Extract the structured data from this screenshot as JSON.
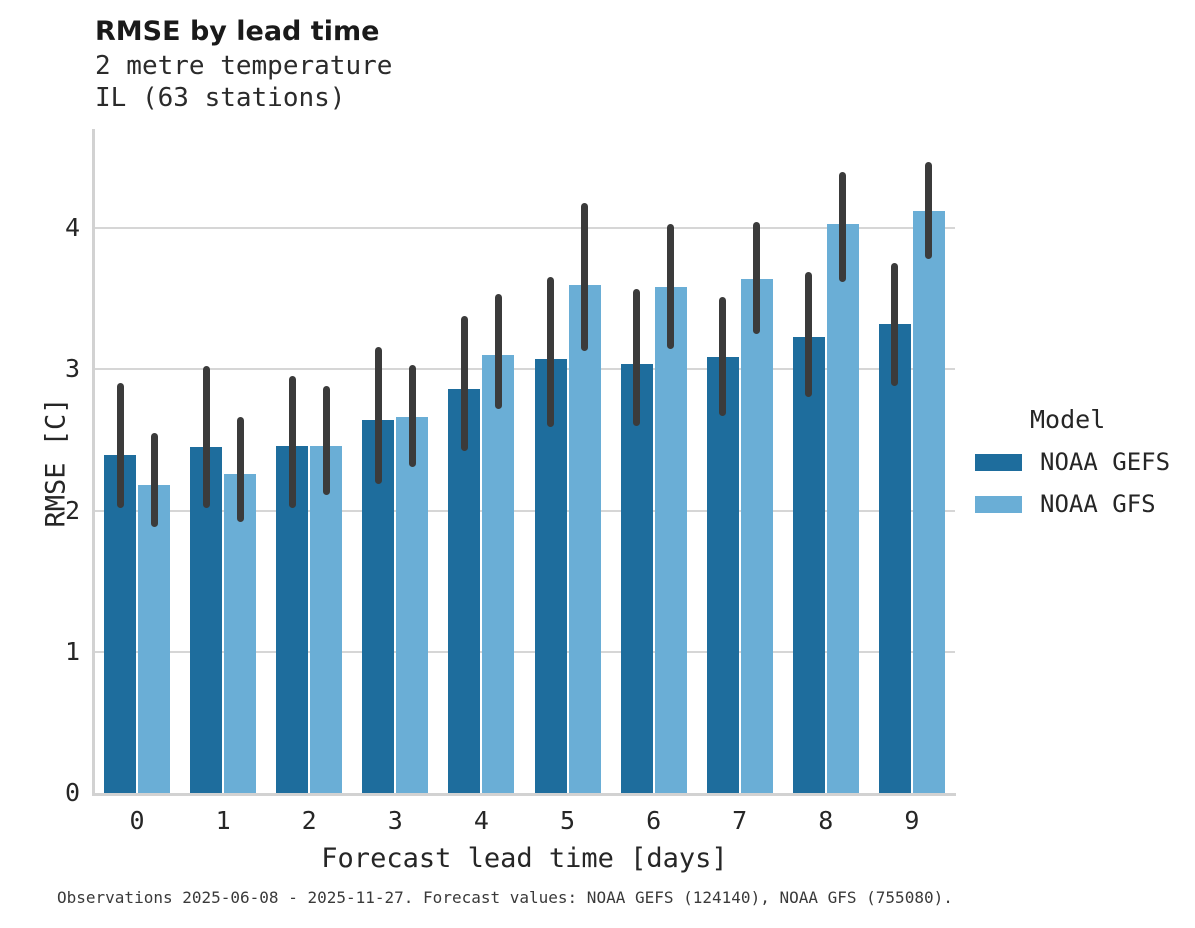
{
  "header": {
    "title": "RMSE by lead time",
    "subtitle_line1": "2 metre temperature",
    "subtitle_line2": "IL (63 stations)"
  },
  "footnote": "Observations 2025-06-08 - 2025-11-27. Forecast values: NOAA GEFS (124140), NOAA GFS (755080).",
  "legend": {
    "title": "Model",
    "items": [
      {
        "label": "NOAA GEFS",
        "color": "#1e6d9d"
      },
      {
        "label": "NOAA GFS",
        "color": "#6aaed6"
      }
    ]
  },
  "chart_data": {
    "type": "bar",
    "title": "RMSE by lead time",
    "subtitle": [
      "2 metre temperature",
      "IL (63 stations)"
    ],
    "xlabel": "Forecast lead time [days]",
    "ylabel": "RMSE [C]",
    "categories": [
      "0",
      "1",
      "2",
      "3",
      "4",
      "5",
      "6",
      "7",
      "8",
      "9"
    ],
    "ylim": [
      0,
      4.7
    ],
    "yticks": [
      0,
      1,
      2,
      3,
      4
    ],
    "grid": "horizontal",
    "legend_title": "Model",
    "legend_position": "right",
    "error_bar_color": "#3b3b3b",
    "axis_color": "#d2d2d2",
    "series": [
      {
        "name": "NOAA GEFS",
        "color": "#1e6d9d",
        "values": [
          2.39,
          2.45,
          2.46,
          2.64,
          2.86,
          3.07,
          3.04,
          3.09,
          3.23,
          3.32
        ],
        "err_low": [
          2.02,
          2.02,
          2.02,
          2.19,
          2.42,
          2.59,
          2.6,
          2.67,
          2.8,
          2.88
        ],
        "err_high": [
          2.9,
          3.02,
          2.95,
          3.16,
          3.38,
          3.65,
          3.57,
          3.51,
          3.69,
          3.75
        ]
      },
      {
        "name": "NOAA GFS",
        "color": "#6aaed6",
        "values": [
          2.18,
          2.26,
          2.46,
          2.66,
          3.1,
          3.6,
          3.58,
          3.64,
          4.03,
          4.12
        ],
        "err_low": [
          1.88,
          1.92,
          2.11,
          2.31,
          2.72,
          3.13,
          3.14,
          3.25,
          3.62,
          3.78
        ],
        "err_high": [
          2.55,
          2.66,
          2.88,
          3.03,
          3.53,
          4.18,
          4.03,
          4.04,
          4.4,
          4.47
        ]
      }
    ]
  }
}
